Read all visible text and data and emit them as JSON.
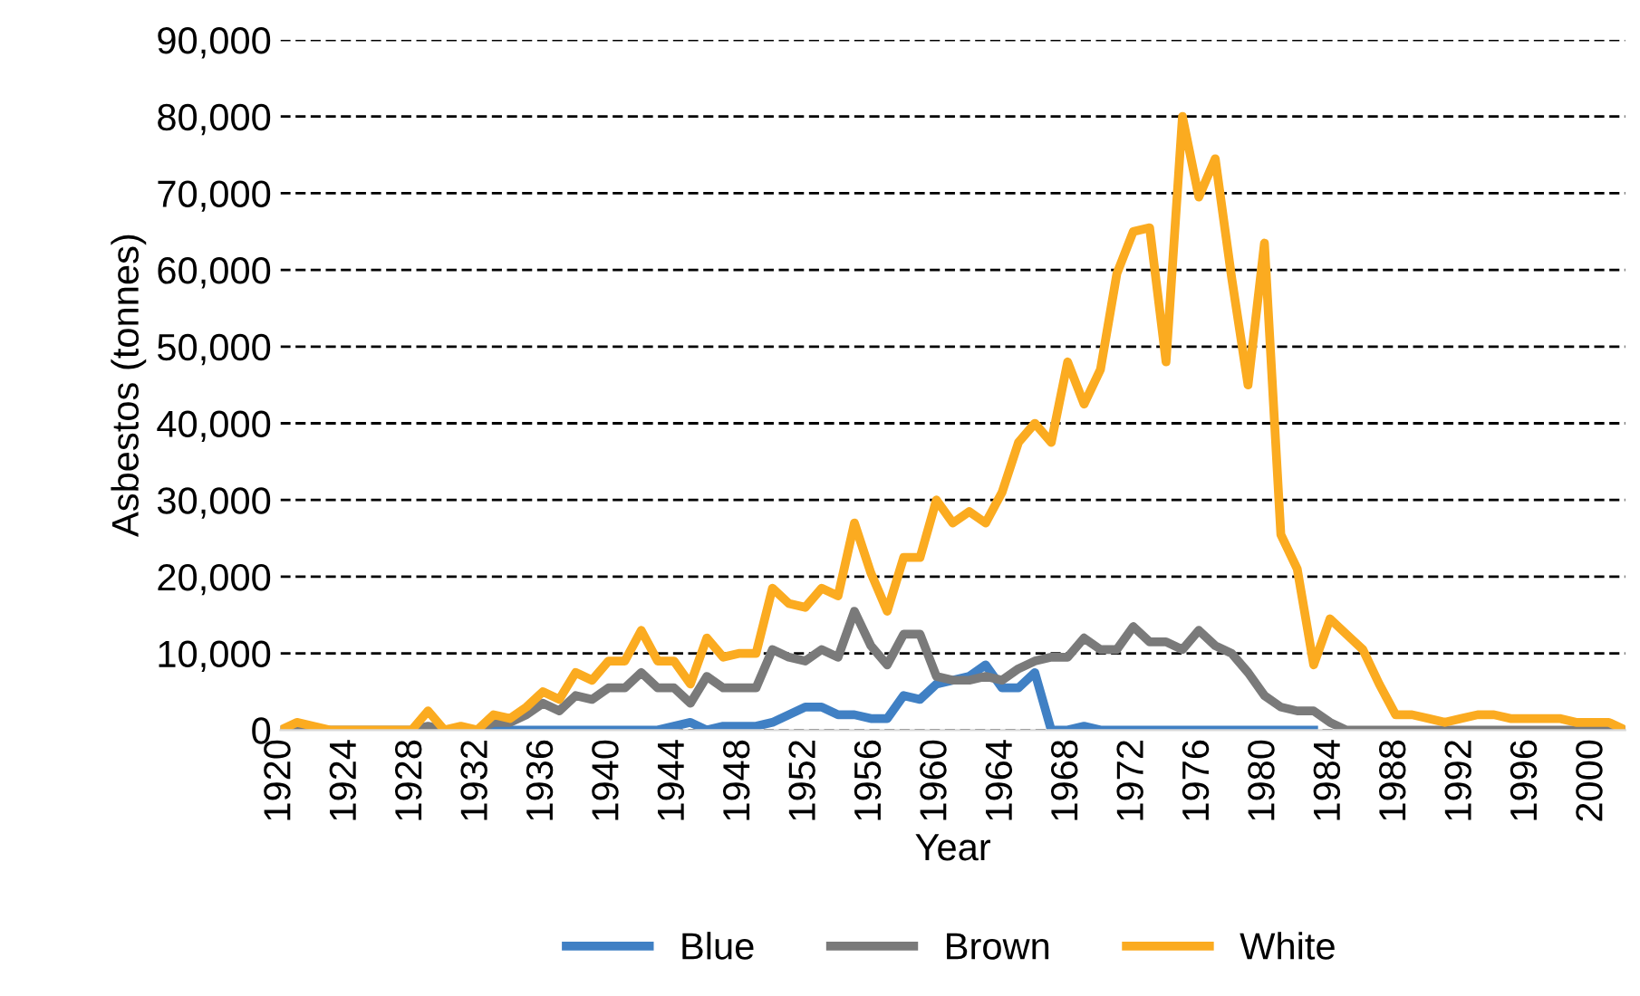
{
  "chart_data": {
    "type": "line",
    "xlabel": "Year",
    "ylabel": "Asbestos (tonnes)",
    "x": [
      1920,
      1921,
      1922,
      1923,
      1924,
      1925,
      1926,
      1927,
      1928,
      1929,
      1930,
      1931,
      1932,
      1933,
      1934,
      1935,
      1936,
      1937,
      1938,
      1939,
      1940,
      1941,
      1942,
      1943,
      1944,
      1945,
      1946,
      1947,
      1948,
      1949,
      1950,
      1951,
      1952,
      1953,
      1954,
      1955,
      1956,
      1957,
      1958,
      1959,
      1960,
      1961,
      1962,
      1963,
      1964,
      1965,
      1966,
      1967,
      1968,
      1969,
      1970,
      1971,
      1972,
      1973,
      1974,
      1975,
      1976,
      1977,
      1978,
      1979,
      1980,
      1981,
      1982,
      1983,
      1984,
      1985,
      1986,
      1987,
      1988,
      1989,
      1990,
      1991,
      1992,
      1993,
      1994,
      1995,
      1996,
      1997,
      1998,
      1999,
      2000,
      2001,
      2002
    ],
    "series": [
      {
        "name": "Blue",
        "color": "#4080c4",
        "values": [
          null,
          null,
          null,
          null,
          null,
          null,
          null,
          null,
          null,
          null,
          null,
          0,
          0,
          0,
          0,
          0,
          0,
          0,
          0,
          0,
          0,
          0,
          0,
          0,
          500,
          1000,
          0,
          500,
          500,
          500,
          1000,
          2000,
          3000,
          3000,
          2000,
          2000,
          1500,
          1500,
          4500,
          4000,
          6000,
          6500,
          7000,
          8500,
          5500,
          5500,
          7500,
          0,
          0,
          500,
          0,
          0,
          0,
          0,
          0,
          0,
          0,
          0,
          0,
          0,
          0,
          0,
          0,
          0,
          null,
          null,
          null,
          null,
          null,
          null,
          null,
          null,
          null,
          null,
          null,
          null,
          null,
          null,
          null,
          null,
          null,
          null,
          null
        ]
      },
      {
        "name": "Brown",
        "color": "#7a7a7a",
        "values": [
          0,
          0,
          0,
          0,
          0,
          0,
          0,
          0,
          0,
          500,
          0,
          0,
          0,
          1000,
          1000,
          2000,
          3500,
          2500,
          4500,
          4000,
          5500,
          5500,
          7500,
          5500,
          5500,
          3500,
          7000,
          5500,
          5500,
          5500,
          10500,
          9500,
          9000,
          10500,
          9500,
          15500,
          11000,
          8500,
          12500,
          12500,
          7000,
          6500,
          6500,
          7000,
          6500,
          8000,
          9000,
          9500,
          9500,
          12000,
          10500,
          10500,
          13500,
          11500,
          11500,
          10500,
          13000,
          11000,
          10000,
          7500,
          4500,
          3000,
          2500,
          2500,
          1000,
          0,
          0,
          0,
          0,
          0,
          0,
          0,
          0,
          0,
          0,
          0,
          0,
          0,
          0,
          0,
          0,
          0,
          0
        ]
      },
      {
        "name": "White",
        "color": "#fbab20",
        "values": [
          0,
          1000,
          500,
          0,
          0,
          0,
          0,
          0,
          0,
          2500,
          0,
          500,
          0,
          2000,
          1500,
          3000,
          5000,
          4000,
          7500,
          6500,
          9000,
          9000,
          13000,
          9000,
          9000,
          6000,
          12000,
          9500,
          10000,
          10000,
          18500,
          16500,
          16000,
          18500,
          17500,
          27000,
          20500,
          15500,
          22500,
          22500,
          30000,
          27000,
          28500,
          27000,
          31000,
          37500,
          40000,
          37500,
          48000,
          42500,
          47000,
          59500,
          65000,
          65500,
          48000,
          80000,
          69500,
          74500,
          59000,
          45000,
          63500,
          25500,
          21000,
          8500,
          14500,
          12500,
          10500,
          6000,
          2000,
          2000,
          1500,
          1000,
          1500,
          2000,
          2000,
          1500,
          1500,
          1500,
          1500,
          1000,
          1000,
          1000,
          0
        ]
      }
    ],
    "xlim": [
      1920,
      2002
    ],
    "xticks": [
      1920,
      1924,
      1928,
      1932,
      1936,
      1940,
      1944,
      1948,
      1952,
      1956,
      1960,
      1964,
      1968,
      1972,
      1976,
      1980,
      1984,
      1988,
      1992,
      1996,
      2000
    ],
    "ylim": [
      0,
      90000
    ],
    "yticks": [
      {
        "value": 0,
        "label": "0"
      },
      {
        "value": 10000,
        "label": "10,000"
      },
      {
        "value": 20000,
        "label": "20,000"
      },
      {
        "value": 30000,
        "label": "30,000"
      },
      {
        "value": 40000,
        "label": "40,000"
      },
      {
        "value": 50000,
        "label": "50,000"
      },
      {
        "value": 60000,
        "label": "60,000"
      },
      {
        "value": 70000,
        "label": "70,000"
      },
      {
        "value": 80000,
        "label": "80,000"
      },
      {
        "value": 90000,
        "label": "90,000"
      }
    ],
    "grid": "y",
    "legend": "bottom",
    "marker": "none",
    "line_style": "solid"
  }
}
